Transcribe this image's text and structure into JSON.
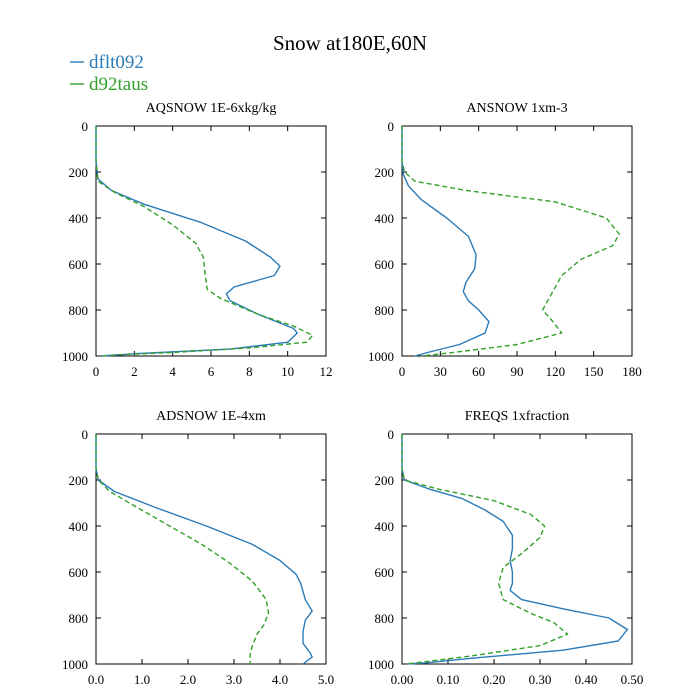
{
  "title": "Snow at180E,60N",
  "legend": [
    {
      "name": "dflt092",
      "color": "#2b7bb9",
      "dash": "solid"
    },
    {
      "name": "d92taus",
      "color": "#33a02c",
      "dash": "dashed"
    }
  ],
  "chart_data": [
    {
      "type": "line",
      "title": "AQSNOW  1E-6xkg/kg",
      "xlim": [
        0,
        12
      ],
      "ylim": [
        1000,
        0
      ],
      "xticks": [
        0,
        2,
        4,
        6,
        8,
        10,
        12
      ],
      "xtick_labels": [
        "0",
        "2",
        "4",
        "6",
        "8",
        "10",
        "12"
      ],
      "yticks": [
        0,
        200,
        400,
        600,
        800,
        1000
      ],
      "ytick_labels": [
        "0",
        "200",
        "400",
        "600",
        "800",
        "1000"
      ],
      "series": [
        {
          "name": "dflt092",
          "points": [
            [
              0,
              0
            ],
            [
              0,
              150
            ],
            [
              0.1,
              230
            ],
            [
              0.8,
              280
            ],
            [
              2.5,
              340
            ],
            [
              5.5,
              420
            ],
            [
              7.8,
              500
            ],
            [
              9.1,
              570
            ],
            [
              9.6,
              610
            ],
            [
              9.3,
              650
            ],
            [
              7.2,
              700
            ],
            [
              6.8,
              730
            ],
            [
              7.0,
              760
            ],
            [
              8.5,
              820
            ],
            [
              10.3,
              880
            ],
            [
              10.5,
              900
            ],
            [
              10,
              940
            ],
            [
              7,
              970
            ],
            [
              2,
              990
            ],
            [
              0.3,
              1000
            ]
          ]
        },
        {
          "name": "d92taus",
          "points": [
            [
              0,
              0
            ],
            [
              0,
              150
            ],
            [
              0.1,
              240
            ],
            [
              1,
              290
            ],
            [
              2.5,
              350
            ],
            [
              4,
              430
            ],
            [
              5.2,
              510
            ],
            [
              5.6,
              570
            ],
            [
              5.7,
              650
            ],
            [
              5.8,
              710
            ],
            [
              6.5,
              750
            ],
            [
              8.5,
              820
            ],
            [
              10.3,
              870
            ],
            [
              11.3,
              910
            ],
            [
              11,
              940
            ],
            [
              8,
              965
            ],
            [
              4,
              985
            ],
            [
              1,
              995
            ],
            [
              0.2,
              1000
            ]
          ]
        }
      ]
    },
    {
      "type": "line",
      "title": "ANSNOW  1xm-3",
      "xlim": [
        0,
        180
      ],
      "ylim": [
        1000,
        0
      ],
      "xticks": [
        0,
        30,
        60,
        90,
        120,
        150,
        180
      ],
      "xtick_labels": [
        "0",
        "30",
        "60",
        "90",
        "120",
        "150",
        "180"
      ],
      "yticks": [
        0,
        200,
        400,
        600,
        800,
        1000
      ],
      "ytick_labels": [
        "0",
        "200",
        "400",
        "600",
        "800",
        "1000"
      ],
      "series": [
        {
          "name": "dflt092",
          "points": [
            [
              0,
              0
            ],
            [
              0,
              150
            ],
            [
              1,
              210
            ],
            [
              5,
              260
            ],
            [
              15,
              320
            ],
            [
              35,
              400
            ],
            [
              52,
              480
            ],
            [
              58,
              560
            ],
            [
              57,
              620
            ],
            [
              50,
              680
            ],
            [
              48,
              720
            ],
            [
              52,
              760
            ],
            [
              60,
              800
            ],
            [
              68,
              850
            ],
            [
              65,
              900
            ],
            [
              45,
              950
            ],
            [
              20,
              985
            ],
            [
              10,
              1000
            ]
          ]
        },
        {
          "name": "d92taus",
          "points": [
            [
              0,
              0
            ],
            [
              0,
              150
            ],
            [
              2,
              200
            ],
            [
              10,
              240
            ],
            [
              50,
              280
            ],
            [
              120,
              330
            ],
            [
              160,
              400
            ],
            [
              170,
              470
            ],
            [
              165,
              520
            ],
            [
              140,
              580
            ],
            [
              125,
              650
            ],
            [
              118,
              720
            ],
            [
              110,
              800
            ],
            [
              118,
              850
            ],
            [
              125,
              900
            ],
            [
              90,
              950
            ],
            [
              40,
              985
            ],
            [
              15,
              1000
            ]
          ]
        }
      ]
    },
    {
      "type": "line",
      "title": "ADSNOW  1E-4xm",
      "xlim": [
        0,
        5
      ],
      "ylim": [
        1000,
        0
      ],
      "xticks": [
        0,
        1,
        2,
        3,
        4,
        5
      ],
      "xtick_labels": [
        "0.0",
        "1.0",
        "2.0",
        "3.0",
        "4.0",
        "5.0"
      ],
      "yticks": [
        0,
        200,
        400,
        600,
        800,
        1000
      ],
      "ytick_labels": [
        "0",
        "200",
        "400",
        "600",
        "800",
        "1000"
      ],
      "series": [
        {
          "name": "dflt092",
          "points": [
            [
              0,
              0
            ],
            [
              0,
              150
            ],
            [
              0.05,
              200
            ],
            [
              0.4,
              250
            ],
            [
              1.3,
              320
            ],
            [
              2.4,
              400
            ],
            [
              3.4,
              480
            ],
            [
              4.0,
              550
            ],
            [
              4.35,
              610
            ],
            [
              4.45,
              650
            ],
            [
              4.55,
              720
            ],
            [
              4.7,
              770
            ],
            [
              4.55,
              810
            ],
            [
              4.5,
              860
            ],
            [
              4.5,
              910
            ],
            [
              4.65,
              950
            ],
            [
              4.7,
              970
            ],
            [
              4.5,
              1000
            ]
          ]
        },
        {
          "name": "d92taus",
          "points": [
            [
              0,
              0
            ],
            [
              0,
              150
            ],
            [
              0.05,
              200
            ],
            [
              0.3,
              250
            ],
            [
              0.9,
              320
            ],
            [
              1.6,
              400
            ],
            [
              2.3,
              480
            ],
            [
              2.9,
              560
            ],
            [
              3.4,
              640
            ],
            [
              3.7,
              720
            ],
            [
              3.75,
              780
            ],
            [
              3.65,
              830
            ],
            [
              3.5,
              870
            ],
            [
              3.4,
              920
            ],
            [
              3.35,
              960
            ],
            [
              3.35,
              1000
            ]
          ]
        }
      ]
    },
    {
      "type": "line",
      "title": "FREQS  1xfraction",
      "xlim": [
        0,
        0.5
      ],
      "ylim": [
        1000,
        0
      ],
      "xticks": [
        0,
        0.1,
        0.2,
        0.3,
        0.4,
        0.5
      ],
      "xtick_labels": [
        "0.00",
        "0.10",
        "0.20",
        "0.30",
        "0.40",
        "0.50"
      ],
      "yticks": [
        0,
        200,
        400,
        600,
        800,
        1000
      ],
      "ytick_labels": [
        "0",
        "200",
        "400",
        "600",
        "800",
        "1000"
      ],
      "series": [
        {
          "name": "dflt092",
          "points": [
            [
              0,
              0
            ],
            [
              0,
              150
            ],
            [
              0.005,
              200
            ],
            [
              0.06,
              240
            ],
            [
              0.13,
              280
            ],
            [
              0.18,
              330
            ],
            [
              0.22,
              380
            ],
            [
              0.24,
              440
            ],
            [
              0.24,
              500
            ],
            [
              0.235,
              550
            ],
            [
              0.24,
              600
            ],
            [
              0.24,
              650
            ],
            [
              0.235,
              680
            ],
            [
              0.26,
              720
            ],
            [
              0.35,
              760
            ],
            [
              0.45,
              800
            ],
            [
              0.49,
              850
            ],
            [
              0.47,
              900
            ],
            [
              0.35,
              940
            ],
            [
              0.15,
              975
            ],
            [
              0.05,
              995
            ],
            [
              0.01,
              1000
            ]
          ]
        },
        {
          "name": "d92taus",
          "points": [
            [
              0,
              0
            ],
            [
              0,
              150
            ],
            [
              0.005,
              200
            ],
            [
              0.08,
              240
            ],
            [
              0.2,
              290
            ],
            [
              0.28,
              350
            ],
            [
              0.31,
              400
            ],
            [
              0.3,
              450
            ],
            [
              0.26,
              520
            ],
            [
              0.22,
              580
            ],
            [
              0.21,
              650
            ],
            [
              0.22,
              720
            ],
            [
              0.28,
              780
            ],
            [
              0.33,
              820
            ],
            [
              0.36,
              870
            ],
            [
              0.3,
              920
            ],
            [
              0.15,
              965
            ],
            [
              0.05,
              990
            ],
            [
              0.01,
              1000
            ]
          ]
        }
      ]
    }
  ]
}
